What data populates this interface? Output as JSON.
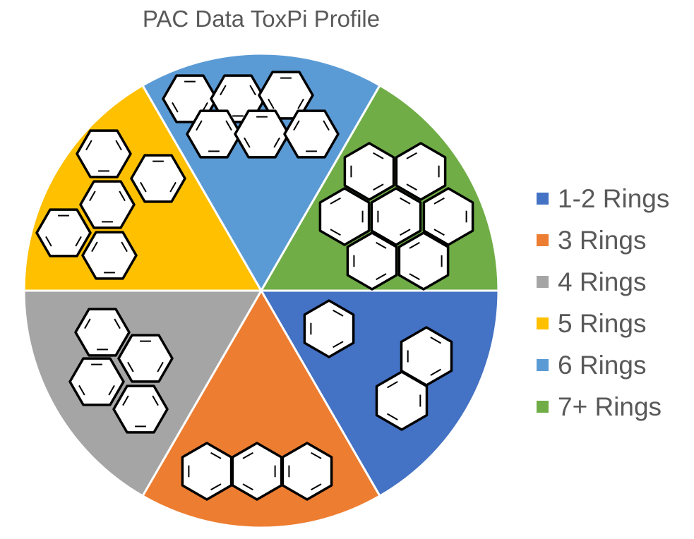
{
  "chart_data": {
    "type": "pie",
    "title": "PAC Data ToxPi Profile",
    "categories": [
      "1-2 Rings",
      "3 Rings",
      "4 Rings",
      "5 Rings",
      "6 Rings",
      "7+ Rings"
    ],
    "values": [
      1,
      1,
      1,
      1,
      1,
      1
    ],
    "colors": [
      "#4472C4",
      "#ED7D31",
      "#A5A5A5",
      "#FFC000",
      "#5B9BD5",
      "#70AD47"
    ],
    "legend": "right",
    "slice_icons": [
      "benzene-naphthalene-icon",
      "anthracene-icon",
      "pyrene-icon",
      "benzopyrene-icon",
      "benzoperylene-icon",
      "coronene-icon"
    ]
  }
}
